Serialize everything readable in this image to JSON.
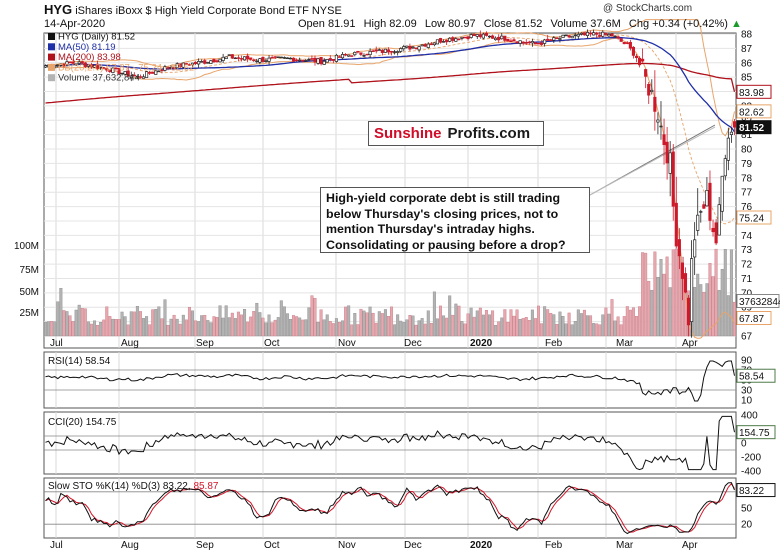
{
  "header": {
    "ticker": "HYG",
    "name": "iShares iBoxx $ High Yield Corporate Bond ETF",
    "exchange": "NYSE",
    "date": "14-Apr-2020",
    "open_label": "Open",
    "open": "81.91",
    "high_label": "High",
    "high": "82.09",
    "low_label": "Low",
    "low": "80.97",
    "close_label": "Close",
    "close": "81.52",
    "volume_label": "Volume",
    "volume": "37.6M",
    "chg_label": "Chg",
    "chg": "+0.34 (+0.42%)",
    "chg_arrow": "▲",
    "watermark": "@ StockCharts.com"
  },
  "legend": {
    "price": "HYG (Daily) 81.52",
    "ma50": "MA(50) 81.19",
    "ma200": "MA(200) 83.98",
    "bb": "BB(20,2.0) 67.87 - 75.24 - 82.62",
    "volume": "Volume 37,632,844"
  },
  "brand": {
    "part1": "Sunshine",
    "part2": "Profits.com"
  },
  "annotation": "High-yield corporate debt is still trading below Thursday's closing prices, not to mention Thursday's intraday highs. Consolidating or pausing before a drop?",
  "colors": {
    "up": "#222222",
    "down": "#cc1a2a",
    "ma50": "#1f2fa8",
    "ma200": "#b0121b",
    "bb": "#e8a46a",
    "vol_up": "#b3b3b3",
    "vol_down": "#e6a7ae",
    "rsi_fill_hi": "#4f7a4a",
    "rsi_fill_lo": "#7a4a4a",
    "sto_k": "#111111",
    "sto_d": "#d4162a"
  },
  "chart_data": [
    {
      "type": "candlestick",
      "title": "HYG (Daily) 81.52",
      "x_ticks": [
        "Jul",
        "Aug",
        "Sep",
        "Oct",
        "Nov",
        "Dec",
        "2020",
        "Feb",
        "Mar",
        "Apr"
      ],
      "y_ticks": [
        67,
        68,
        69,
        70,
        71,
        72,
        73,
        74,
        75,
        76,
        77,
        78,
        79,
        80,
        81,
        82,
        83,
        84,
        85,
        86,
        87,
        88
      ],
      "volume_ticks": [
        "25M",
        "50M",
        "75M",
        "100M"
      ],
      "ylim": [
        67,
        88
      ],
      "badges": [
        {
          "label": "83.98",
          "value": 83.98,
          "series": "MA(200)"
        },
        {
          "label": "82.62",
          "value": 82.62,
          "series": "BB upper"
        },
        {
          "label": "81.52",
          "value": 81.52,
          "series": "Close"
        },
        {
          "label": "75.24",
          "value": 75.24,
          "series": "BB middle"
        },
        {
          "label": "67.87",
          "value": 67.87,
          "series": "BB lower"
        },
        {
          "label": "37632844",
          "value": 37632844,
          "series": "Volume"
        }
      ],
      "last": {
        "open": 81.91,
        "high": 82.09,
        "low": 80.97,
        "close": 81.52,
        "volume": 37632844
      },
      "ma50_last": 81.19,
      "ma200_last": 83.98,
      "bb_last": [
        67.87,
        75.24,
        82.62
      ],
      "series": [
        {
          "name": "HYG (Daily)",
          "anchors": [
            [
              0,
              85.8
            ],
            [
              10,
              86.0
            ],
            [
              20,
              85.6
            ],
            [
              30,
              85.0
            ],
            [
              40,
              85.7
            ],
            [
              50,
              86.0
            ],
            [
              60,
              86.4
            ],
            [
              70,
              86.2
            ],
            [
              80,
              86.3
            ],
            [
              90,
              86.1
            ],
            [
              100,
              86.6
            ],
            [
              110,
              86.8
            ],
            [
              120,
              87.1
            ],
            [
              130,
              87.6
            ],
            [
              140,
              87.9
            ],
            [
              150,
              87.7
            ],
            [
              160,
              87.3
            ],
            [
              170,
              87.8
            ],
            [
              180,
              88.0
            ],
            [
              185,
              87.9
            ],
            [
              190,
              87.2
            ],
            [
              193,
              86.4
            ],
            [
              196,
              84.8
            ],
            [
              198,
              83.8
            ],
            [
              200,
              82.5
            ],
            [
              202,
              80.6
            ],
            [
              204,
              79.0
            ],
            [
              205,
              76.0
            ],
            [
              206,
              74.0
            ],
            [
              208,
              71.5
            ],
            [
              209,
              69.8
            ],
            [
              210,
              68.2
            ],
            [
              211,
              72.0
            ],
            [
              212,
              74.0
            ],
            [
              214,
              75.5
            ],
            [
              216,
              76.6
            ],
            [
              218,
              74.5
            ],
            [
              219,
              73.6
            ],
            [
              220,
              75.5
            ],
            [
              221,
              78.0
            ],
            [
              222,
              80.0
            ],
            [
              223,
              81.3
            ],
            [
              224,
              81.2
            ],
            [
              225,
              81.52
            ]
          ]
        },
        {
          "name": "MA(50)",
          "value_last": 81.19
        },
        {
          "name": "MA(200)",
          "value_last": 83.98
        },
        {
          "name": "BB(20,2.0)",
          "values_last": [
            67.87,
            75.24,
            82.62
          ]
        },
        {
          "name": "Volume",
          "value_last": 37632844
        }
      ]
    },
    {
      "type": "line",
      "title": "RSI(14) 58.54",
      "y_ticks": [
        90,
        70,
        50,
        30,
        10
      ],
      "ylim": [
        0,
        100
      ],
      "levels": [
        70,
        30
      ],
      "series": [
        {
          "name": "RSI(14)",
          "value_last": 58.54
        }
      ]
    },
    {
      "type": "line",
      "title": "CCI(20) 154.75",
      "y_ticks": [
        400,
        200,
        0,
        -200,
        -400
      ],
      "ylim": [
        -400,
        400
      ],
      "levels": [
        100,
        -100
      ],
      "series": [
        {
          "name": "CCI(20)",
          "value_last": 154.75
        }
      ]
    },
    {
      "type": "line",
      "title": "Slow STO %K(14) %D(3) 83.22, 85.87",
      "y_ticks": [
        80,
        50,
        20
      ],
      "ylim": [
        0,
        100
      ],
      "levels": [
        80,
        20
      ],
      "series": [
        {
          "name": "%K(14)",
          "value_last": 83.22
        },
        {
          "name": "%D(3)",
          "value_last": 85.87
        }
      ]
    }
  ]
}
